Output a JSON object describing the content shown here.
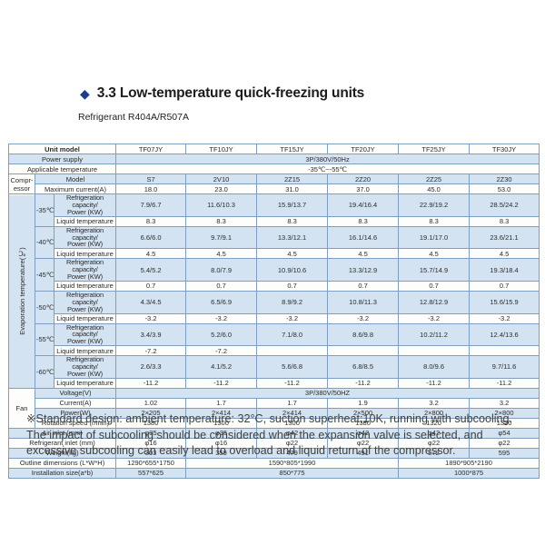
{
  "title": {
    "section": "3.3 Low-temperature quick-freezing units",
    "subtitle": "Refrigerant R404A/R507A",
    "diamond_icon": "◆"
  },
  "colors": {
    "accent_blue": "#1d3c8c",
    "row_blue": "#d4e3f1",
    "border_blue": "#7e9fc1"
  },
  "note": "※Standard design: ambient temperature: 32°C, suction superheat:10K, running with subcooling. The impact of subcooling should be considered when the expansion valve is selected, and excessive subcooling can easily lead to overload and liquid return of the compressor.",
  "table": {
    "rows": [
      {
        "s": "w",
        "cells": [
          {
            "t": "Unit model",
            "cs": 3,
            "c": "bold",
            "n": "unit-model-header"
          },
          {
            "t": "TF07JY"
          },
          {
            "t": "TF10JY"
          },
          {
            "t": "TF15JY"
          },
          {
            "t": "TF20JY"
          },
          {
            "t": "TF25JY"
          },
          {
            "t": "TF30JY"
          }
        ]
      },
      {
        "s": "b",
        "cells": [
          {
            "t": "Power supply",
            "cs": 3,
            "n": "row-label"
          },
          {
            "t": "3P/380V/50Hz",
            "cs": 6
          }
        ]
      },
      {
        "s": "w",
        "cells": [
          {
            "t": "Applicable temperature",
            "cs": 3,
            "n": "row-label"
          },
          {
            "t": "-35℃~-55℃",
            "cs": 6
          }
        ]
      },
      {
        "s": "b",
        "cells": [
          {
            "t": "Compr-\nessor",
            "rs": 2,
            "c": "sm white-cell",
            "n": "compressor-group-label"
          },
          {
            "t": "Model",
            "cs": 2,
            "n": "row-label"
          },
          {
            "t": "S7"
          },
          {
            "t": "2V10"
          },
          {
            "t": "2Z15"
          },
          {
            "t": "2Z20"
          },
          {
            "t": "2Z25"
          },
          {
            "t": "2Z30"
          }
        ]
      },
      {
        "s": "w",
        "cells": [
          {
            "t": "Maximum current(A)",
            "cs": 2,
            "c": "sm",
            "n": "row-label"
          },
          {
            "t": "18.0"
          },
          {
            "t": "23.0"
          },
          {
            "t": "31.0"
          },
          {
            "t": "37.0"
          },
          {
            "t": "45.0"
          },
          {
            "t": "53.0"
          }
        ]
      },
      {
        "s": "b",
        "cells": [
          {
            "t": "Evaporation temperature(℃)",
            "rs": 12,
            "c": "vert",
            "n": "evaporation-temperature-group-label"
          },
          {
            "t": "-35℃",
            "rs": 2,
            "c": "sm",
            "n": "temp-label"
          },
          {
            "t": "Refrigeration capacity/\nPower (KW)",
            "c": "tiny",
            "n": "row-label"
          },
          {
            "t": "7.9/6.7"
          },
          {
            "t": "11.6/10.3"
          },
          {
            "t": "15.9/13.7"
          },
          {
            "t": "19.4/16.4"
          },
          {
            "t": "22.9/19.2"
          },
          {
            "t": "28.5/24.2"
          }
        ]
      },
      {
        "s": "w",
        "cells": [
          {
            "t": "Liquid temperature",
            "c": "sm",
            "n": "row-label"
          },
          {
            "t": "8.3"
          },
          {
            "t": "8.3"
          },
          {
            "t": "8.3"
          },
          {
            "t": "8.3"
          },
          {
            "t": "8.3"
          },
          {
            "t": "8.3"
          }
        ]
      },
      {
        "s": "b",
        "cells": [
          {
            "t": "-40℃",
            "rs": 2,
            "c": "sm",
            "n": "temp-label"
          },
          {
            "t": "Refrigeration capacity/\nPower (KW)",
            "c": "tiny",
            "n": "row-label"
          },
          {
            "t": "6.6/6.0"
          },
          {
            "t": "9.7/9.1"
          },
          {
            "t": "13.3/12.1"
          },
          {
            "t": "16.1/14.6"
          },
          {
            "t": "19.1/17.0"
          },
          {
            "t": "23.6/21.1"
          }
        ]
      },
      {
        "s": "w",
        "cells": [
          {
            "t": "Liquid temperature",
            "c": "sm",
            "n": "row-label"
          },
          {
            "t": "4.5"
          },
          {
            "t": "4.5"
          },
          {
            "t": "4.5"
          },
          {
            "t": "4.5"
          },
          {
            "t": "4.5"
          },
          {
            "t": "4.5"
          }
        ]
      },
      {
        "s": "b",
        "cells": [
          {
            "t": "-45℃",
            "rs": 2,
            "c": "sm",
            "n": "temp-label"
          },
          {
            "t": "Refrigeration capacity/\nPower (KW)",
            "c": "tiny",
            "n": "row-label"
          },
          {
            "t": "5.4/5.2"
          },
          {
            "t": "8.0/7.9"
          },
          {
            "t": "10.9/10.6"
          },
          {
            "t": "13.3/12.9"
          },
          {
            "t": "15.7/14.9"
          },
          {
            "t": "19.3/18.4"
          }
        ]
      },
      {
        "s": "w",
        "cells": [
          {
            "t": "Liquid temperature",
            "c": "sm",
            "n": "row-label"
          },
          {
            "t": "0.7"
          },
          {
            "t": "0.7"
          },
          {
            "t": "0.7"
          },
          {
            "t": "0.7"
          },
          {
            "t": "0.7"
          },
          {
            "t": "0.7"
          }
        ]
      },
      {
        "s": "b",
        "cells": [
          {
            "t": "-50℃",
            "rs": 2,
            "c": "sm",
            "n": "temp-label"
          },
          {
            "t": "Refrigeration capacity/\nPower (KW)",
            "c": "tiny",
            "n": "row-label"
          },
          {
            "t": "4.3/4.5"
          },
          {
            "t": "6.5/6.9"
          },
          {
            "t": "8.9/9.2"
          },
          {
            "t": "10.8/11.3"
          },
          {
            "t": "12.8/12.9"
          },
          {
            "t": "15.6/15.9"
          }
        ]
      },
      {
        "s": "w",
        "cells": [
          {
            "t": "Liquid temperature",
            "c": "sm",
            "n": "row-label"
          },
          {
            "t": "-3.2"
          },
          {
            "t": "-3.2"
          },
          {
            "t": "-3.2"
          },
          {
            "t": "-3.2"
          },
          {
            "t": "-3.2"
          },
          {
            "t": "-3.2"
          }
        ]
      },
      {
        "s": "b",
        "cells": [
          {
            "t": "-55℃",
            "rs": 2,
            "c": "sm",
            "n": "temp-label"
          },
          {
            "t": "Refrigeration capacity/\nPower (KW)",
            "c": "tiny",
            "n": "row-label"
          },
          {
            "t": "3.4/3.9"
          },
          {
            "t": "5.2/6.0"
          },
          {
            "t": "7.1/8.0"
          },
          {
            "t": "8.6/9.8"
          },
          {
            "t": "10.2/11.2"
          },
          {
            "t": "12.4/13.6"
          }
        ]
      },
      {
        "s": "w",
        "cells": [
          {
            "t": "Liquid temperature",
            "c": "sm",
            "n": "row-label"
          },
          {
            "t": "-7.2"
          },
          {
            "t": "-7.2"
          },
          {
            "t": ""
          },
          {
            "t": ""
          },
          {
            "t": ""
          },
          {
            "t": ""
          }
        ]
      },
      {
        "s": "b",
        "cells": [
          {
            "t": "-60℃",
            "rs": 2,
            "c": "sm",
            "n": "temp-label"
          },
          {
            "t": "Refrigeration capacity/\nPower (KW)",
            "c": "tiny",
            "n": "row-label"
          },
          {
            "t": "2.6/3.3"
          },
          {
            "t": "4.1/5.2"
          },
          {
            "t": "5.6/6.8"
          },
          {
            "t": "6.8/8.5"
          },
          {
            "t": "8.0/9.6"
          },
          {
            "t": "9.7/11.6"
          }
        ]
      },
      {
        "s": "w",
        "cells": [
          {
            "t": "Liquid temperature",
            "c": "sm",
            "n": "row-label"
          },
          {
            "t": "-11.2"
          },
          {
            "t": "-11.2"
          },
          {
            "t": "-11.2"
          },
          {
            "t": "-11.2"
          },
          {
            "t": "-11.2"
          },
          {
            "t": "-11.2"
          }
        ]
      },
      {
        "s": "b",
        "cells": [
          {
            "t": "Fan",
            "rs": 4,
            "c": "white-cell",
            "n": "fan-group-label"
          },
          {
            "t": "Voltage(V)",
            "cs": 2,
            "n": "row-label"
          },
          {
            "t": "3P/380V/50HZ",
            "cs": 6
          }
        ]
      },
      {
        "s": "w",
        "cells": [
          {
            "t": "Current(A)",
            "cs": 2,
            "n": "row-label"
          },
          {
            "t": "1.02"
          },
          {
            "t": "1.7"
          },
          {
            "t": "1.7"
          },
          {
            "t": "1.9"
          },
          {
            "t": "3.2"
          },
          {
            "t": "3.2"
          }
        ]
      },
      {
        "s": "b",
        "cells": [
          {
            "t": "Power(W)",
            "cs": 2,
            "n": "row-label"
          },
          {
            "t": "2×205"
          },
          {
            "t": "2×414"
          },
          {
            "t": "2×414"
          },
          {
            "t": "2×500"
          },
          {
            "t": "2×800"
          },
          {
            "t": "2×800"
          }
        ]
      },
      {
        "s": "w",
        "cells": [
          {
            "t": "Rotation speed (r/min)",
            "cs": 2,
            "c": "sm",
            "n": "row-label"
          },
          {
            "t": "1380"
          },
          {
            "t": "1300"
          },
          {
            "t": "1300"
          },
          {
            "t": "1380"
          },
          {
            "t": "1320"
          },
          {
            "t": "1320"
          }
        ]
      },
      {
        "s": "b",
        "cells": [
          {
            "t": "Air inlet (mm)",
            "cs": 3,
            "n": "row-label"
          },
          {
            "t": "φ35"
          },
          {
            "t": "φ35"
          },
          {
            "t": "φ42"
          },
          {
            "t": "φ42"
          },
          {
            "t": "φ42"
          },
          {
            "t": "φ54"
          }
        ]
      },
      {
        "s": "w",
        "cells": [
          {
            "t": "Refrigerant inlet (mm)",
            "cs": 3,
            "n": "row-label"
          },
          {
            "t": "φ16"
          },
          {
            "t": "φ16"
          },
          {
            "t": "φ22"
          },
          {
            "t": "φ22"
          },
          {
            "t": "φ22"
          },
          {
            "t": "φ22"
          }
        ]
      },
      {
        "s": "b",
        "cells": [
          {
            "t": "Weight(kg)",
            "cs": 3,
            "n": "row-label"
          },
          {
            "t": "303"
          },
          {
            "t": "359"
          },
          {
            "t": "479"
          },
          {
            "t": "491"
          },
          {
            "t": "572"
          },
          {
            "t": "595"
          }
        ]
      },
      {
        "s": "w",
        "cells": [
          {
            "t": "Outline dimensions (L*W*H)",
            "cs": 3,
            "n": "row-label"
          },
          {
            "t": "1290*655*1750"
          },
          {
            "t": "1590*805*1990",
            "cs": 3
          },
          {
            "t": "1890*905*2190",
            "cs": 2
          }
        ]
      },
      {
        "s": "b",
        "cells": [
          {
            "t": "Installation size(a*b)",
            "cs": 3,
            "n": "row-label"
          },
          {
            "t": "557*625"
          },
          {
            "t": "850*775",
            "cs": 3
          },
          {
            "t": "1000*875",
            "cs": 2
          }
        ]
      }
    ]
  }
}
